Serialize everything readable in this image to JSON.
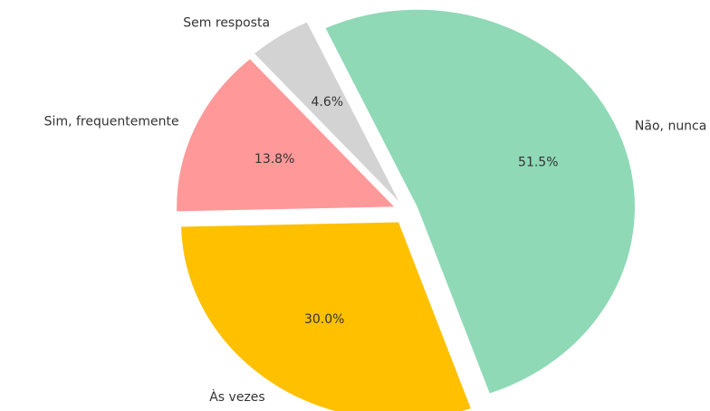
{
  "chart_data": {
    "type": "pie",
    "categories": [
      "Não, nunca",
      "Às vezes",
      "Sim, frequentemente",
      "Sem resposta"
    ],
    "values": [
      51.5,
      30.0,
      13.8,
      4.6
    ],
    "value_labels": [
      "51.5%",
      "30.0%",
      "13.8%",
      "4.6%"
    ],
    "colors": [
      "#8fd9b6",
      "#ffc000",
      "#ff9999",
      "#d3d3d3"
    ]
  }
}
